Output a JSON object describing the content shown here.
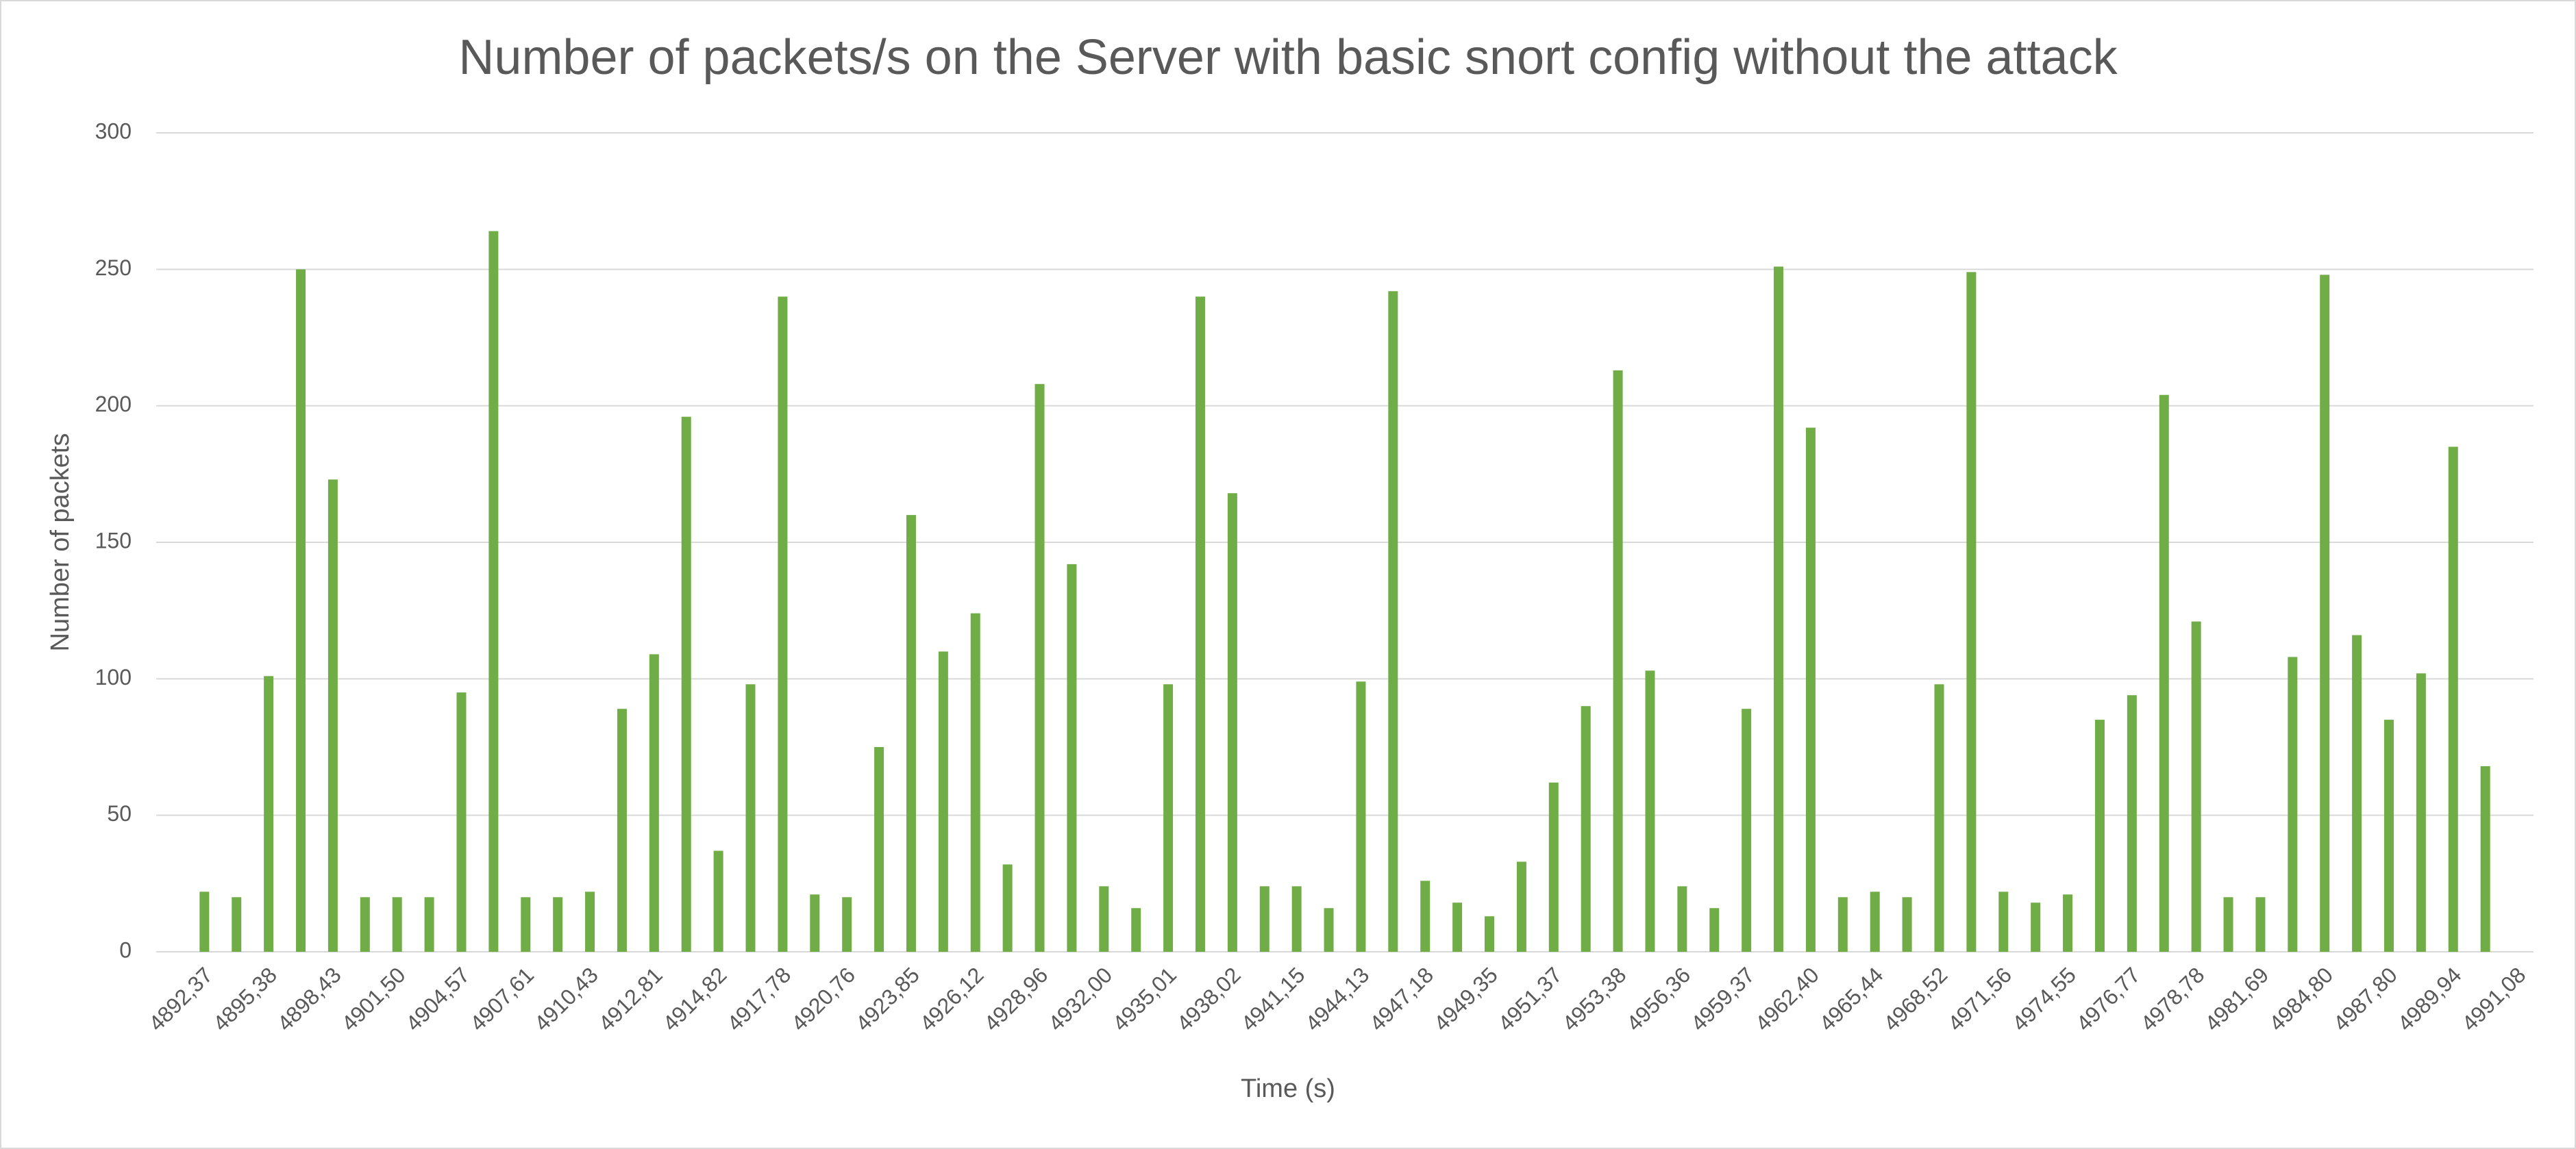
{
  "chart_data": {
    "type": "bar",
    "title": "Number of packets/s on the Server with basic snort config without the attack",
    "xlabel": "Time (s)",
    "ylabel": "Number of packets",
    "categories": [
      null,
      "4892,37",
      null,
      "4895,38",
      null,
      "4898,43",
      null,
      "4901,50",
      null,
      "4904,57",
      null,
      "4907,61",
      null,
      "4910,43",
      null,
      "4912,81",
      null,
      "4914,82",
      null,
      "4917,78",
      null,
      "4920,76",
      null,
      "4923,85",
      null,
      "4926,12",
      null,
      "4928,96",
      null,
      "4932,00",
      null,
      "4935,01",
      null,
      "4938,02",
      null,
      "4941,15",
      null,
      "4944,13",
      null,
      "4947,18",
      null,
      "4949,35",
      null,
      "4951,37",
      null,
      "4953,38",
      null,
      "4956,36",
      null,
      "4959,37",
      null,
      "4962,40",
      null,
      "4965,44",
      null,
      "4968,52",
      null,
      "4971,56",
      null,
      "4974,55",
      null,
      "4976,77",
      null,
      "4978,78",
      null,
      "4981,69",
      null,
      "4984,80",
      null,
      "4987,80",
      null,
      "4989,94",
      null,
      "4991,08"
    ],
    "values": [
      0,
      22,
      20,
      101,
      250,
      173,
      20,
      20,
      20,
      95,
      264,
      20,
      20,
      22,
      89,
      109,
      196,
      37,
      98,
      240,
      21,
      20,
      75,
      160,
      110,
      124,
      32,
      208,
      142,
      24,
      16,
      98,
      240,
      168,
      24,
      24,
      16,
      99,
      242,
      26,
      18,
      13,
      33,
      62,
      90,
      213,
      103,
      24,
      16,
      89,
      251,
      192,
      20,
      22,
      20,
      98,
      249,
      22,
      18,
      21,
      85,
      94,
      204,
      121,
      20,
      20,
      108,
      248,
      116,
      85,
      102,
      185,
      68,
      0
    ],
    "color": "#70ad47",
    "ylim": [
      0,
      300
    ],
    "yticks": [
      0,
      50,
      100,
      150,
      200,
      250,
      300
    ],
    "grid": true
  }
}
